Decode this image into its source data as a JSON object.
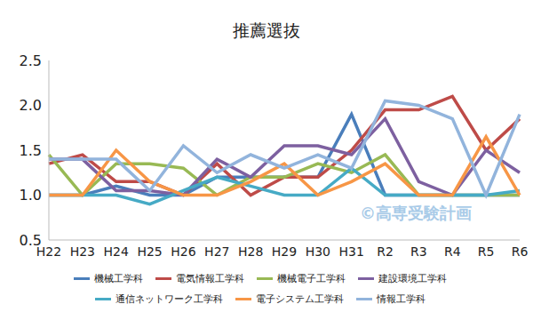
{
  "chart_data": {
    "type": "line",
    "title": "推薦選抜",
    "categories": [
      "H22",
      "H23",
      "H24",
      "H25",
      "H26",
      "H27",
      "H28",
      "H29",
      "H30",
      "H31",
      "R2",
      "R3",
      "R4",
      "R5",
      "R6"
    ],
    "series": [
      {
        "name": "機械工学科",
        "color": "#4a7ebb",
        "values": [
          1.0,
          1.0,
          1.1,
          1.0,
          1.0,
          1.2,
          1.2,
          1.2,
          1.2,
          1.9,
          1.0,
          1.0,
          1.0,
          1.0,
          1.0
        ]
      },
      {
        "name": "電気情報工学科",
        "color": "#be4b48",
        "values": [
          1.35,
          1.45,
          1.15,
          1.15,
          1.0,
          1.35,
          1.0,
          1.2,
          1.2,
          1.5,
          1.95,
          1.95,
          2.1,
          1.5,
          1.85
        ]
      },
      {
        "name": "機械電子工学科",
        "color": "#98b954",
        "values": [
          1.45,
          1.0,
          1.35,
          1.35,
          1.3,
          1.0,
          1.2,
          1.2,
          1.35,
          1.25,
          1.45,
          1.0,
          1.0,
          1.0,
          1.0
        ]
      },
      {
        "name": "建設環境工学科",
        "color": "#7d60a0",
        "values": [
          1.4,
          1.4,
          1.05,
          1.05,
          1.0,
          1.4,
          1.2,
          1.55,
          1.55,
          1.45,
          1.85,
          1.15,
          1.0,
          1.5,
          1.25
        ]
      },
      {
        "name": "通信ネットワーク工学科",
        "color": "#46aac5",
        "values": [
          1.0,
          1.0,
          1.0,
          0.9,
          1.05,
          1.2,
          1.1,
          1.0,
          1.0,
          1.3,
          1.0,
          1.0,
          1.0,
          1.0,
          1.05
        ]
      },
      {
        "name": "電子システム工学科",
        "color": "#f79646",
        "values": [
          1.0,
          1.0,
          1.5,
          1.15,
          1.0,
          1.0,
          1.15,
          1.35,
          1.0,
          1.15,
          1.35,
          1.0,
          1.0,
          1.65,
          1.0
        ]
      },
      {
        "name": "情報工学科",
        "color": "#92b4dc",
        "values": [
          1.4,
          1.4,
          1.4,
          1.05,
          1.55,
          1.25,
          1.45,
          1.3,
          1.45,
          1.3,
          2.05,
          2.0,
          1.85,
          1.0,
          1.9
        ]
      }
    ],
    "ylim": [
      0.5,
      2.5
    ],
    "yticks": [
      0.5,
      {
        "value": 1.0,
        "label": "1.0"
      },
      1.5,
      {
        "value": 2.0,
        "label": "2.0"
      },
      2.5
    ],
    "grid": false,
    "legend": "bottom",
    "annotations": [
      "©高専受験計画"
    ]
  }
}
